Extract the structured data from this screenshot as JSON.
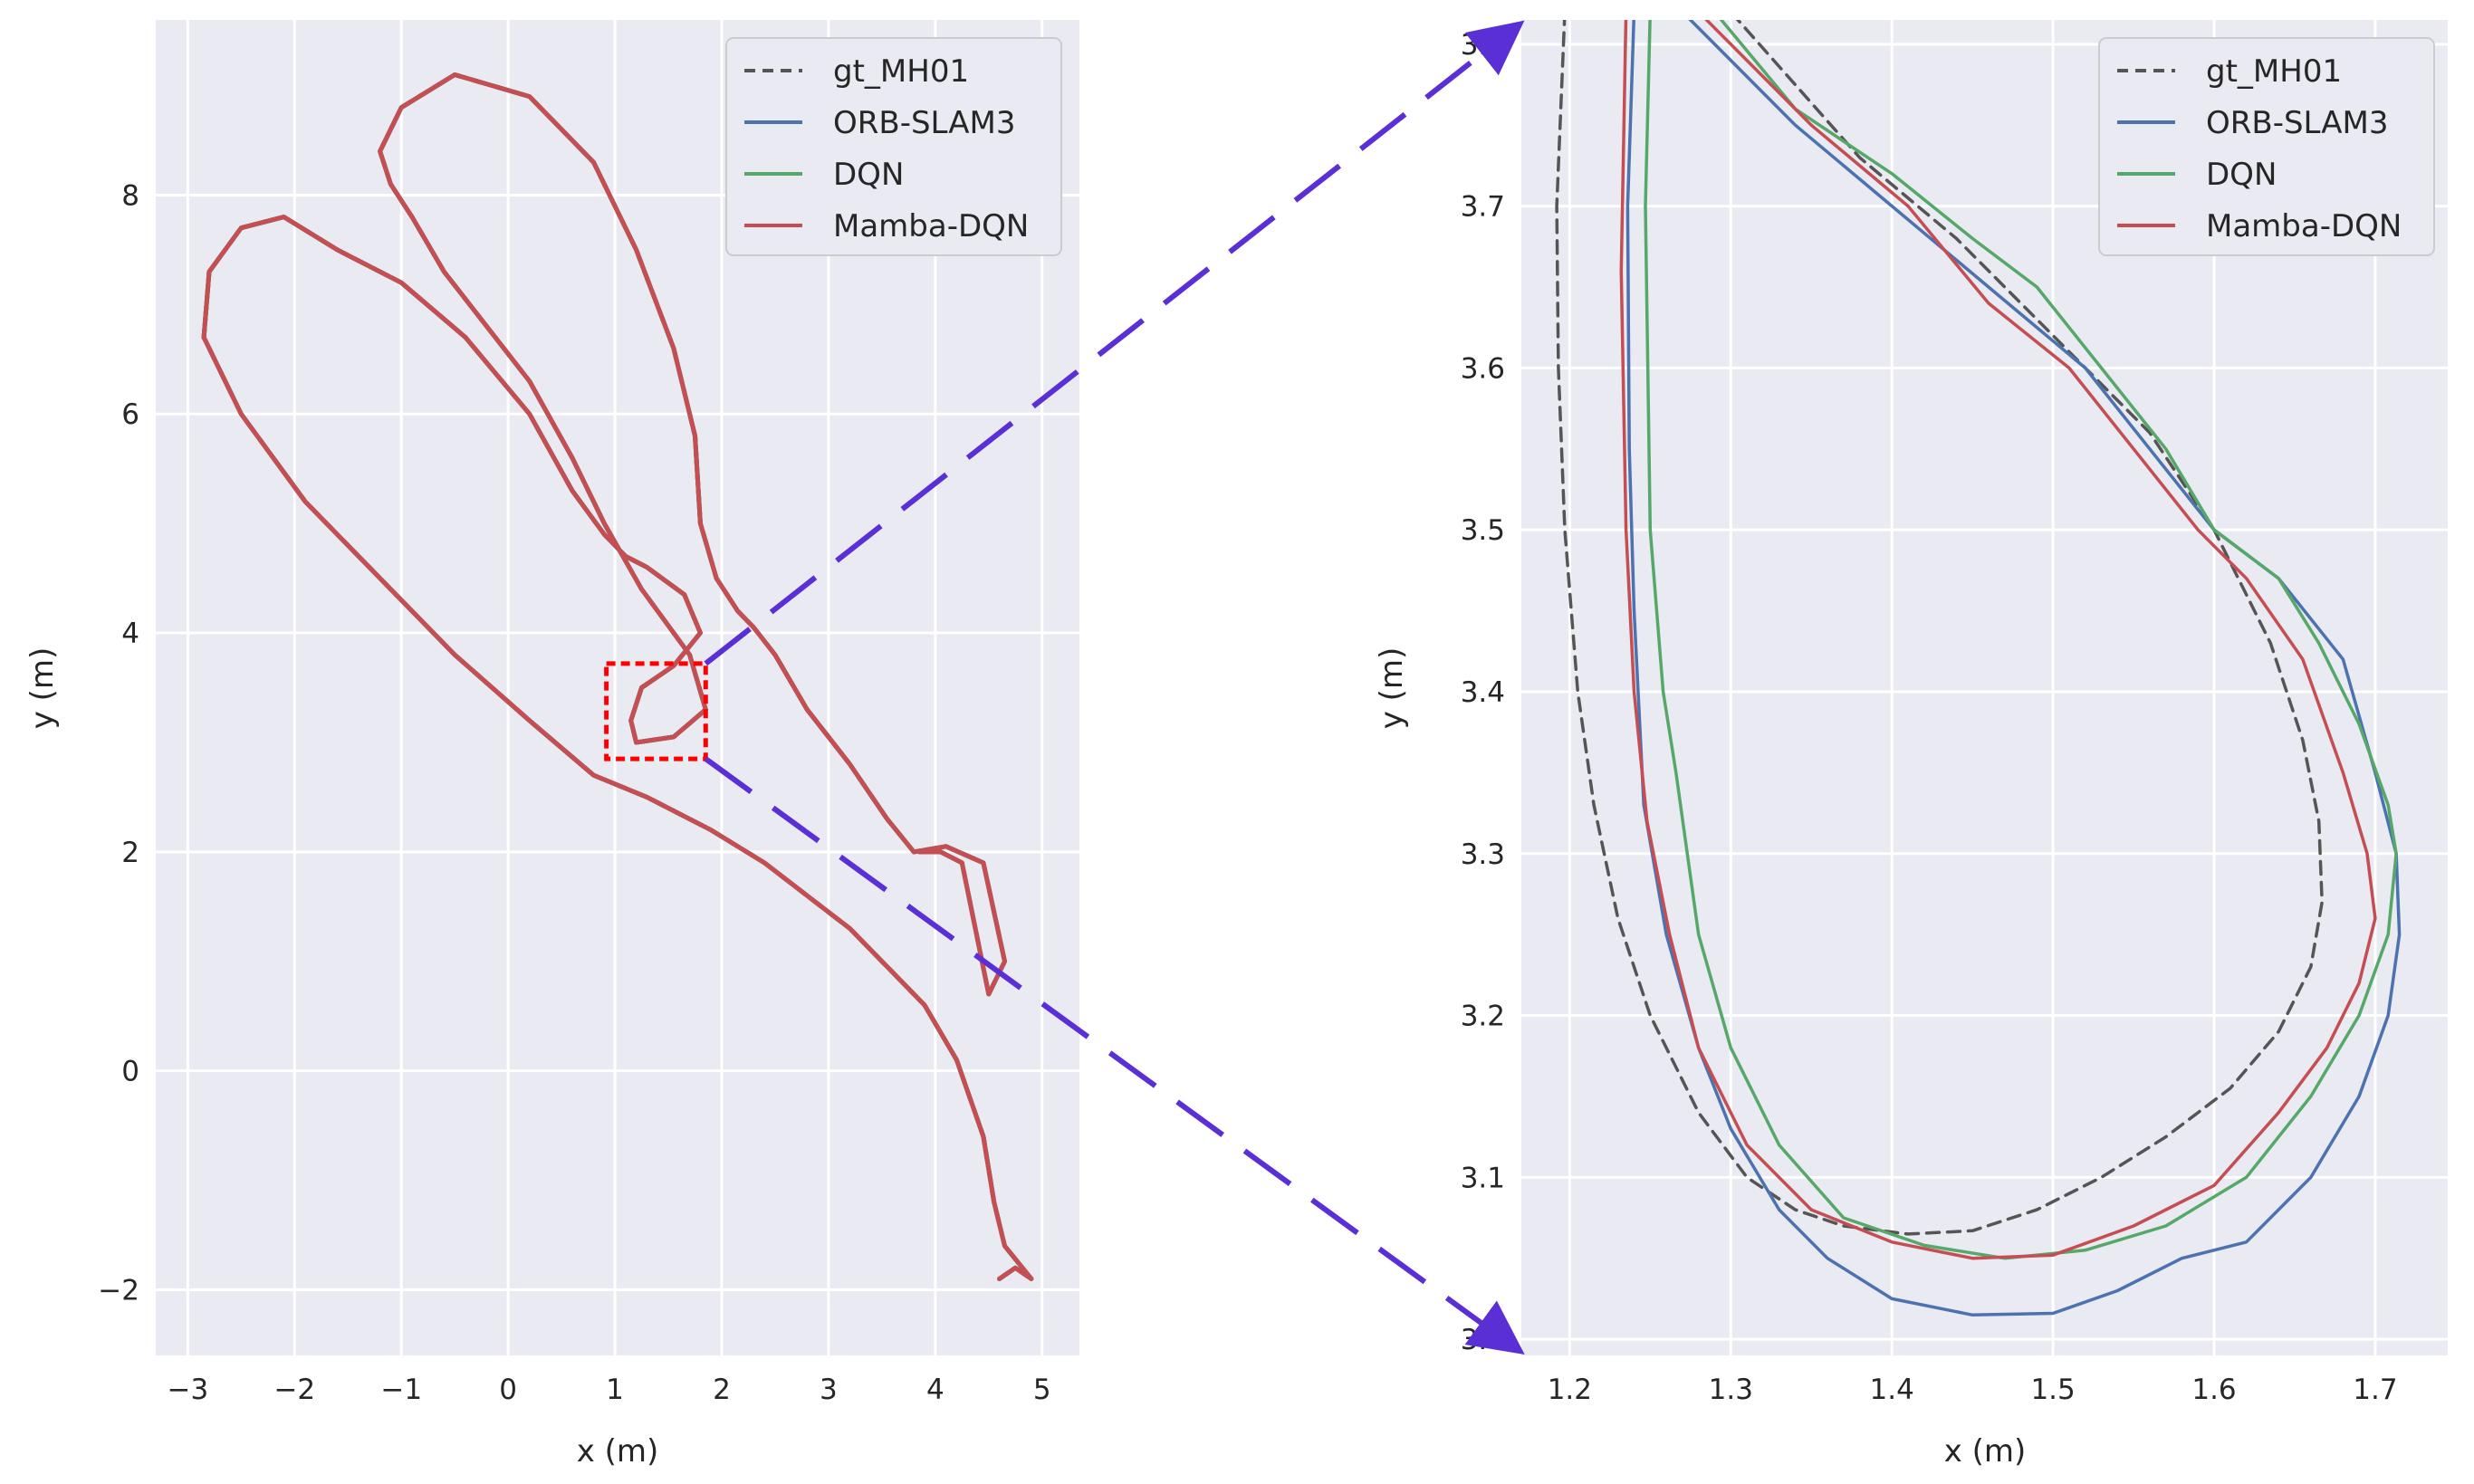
{
  "chart_data": [
    {
      "type": "line",
      "xlabel": "x (m)",
      "ylabel": "y (m)",
      "xlim": [
        -3.3,
        5.35
      ],
      "ylim": [
        -2.6,
        9.6
      ],
      "xticks": [
        -3,
        -2,
        -1,
        0,
        1,
        2,
        3,
        4,
        5
      ],
      "yticks": [
        -2,
        0,
        2,
        4,
        6,
        8
      ],
      "xtick_labels": [
        "−3",
        "−2",
        "−1",
        "0",
        "1",
        "2",
        "3",
        "4",
        "5"
      ],
      "ytick_labels": [
        "−2",
        "0",
        "2",
        "4",
        "6",
        "8"
      ],
      "grid": true,
      "legend": "top-right",
      "highlight_box": {
        "x": [
          0.92,
          1.85
        ],
        "y": [
          2.85,
          3.72
        ],
        "color": "#ff0000"
      },
      "series": [
        {
          "name": "gt_MH01",
          "color": "#555555",
          "style": "dashed",
          "x": [
            4.6,
            4.75,
            4.9,
            4.65,
            4.55,
            4.45,
            4.2,
            3.9,
            3.6,
            3.2,
            2.8,
            2.4,
            1.9,
            1.3,
            0.8,
            0.2,
            -0.5,
            -1.2,
            -1.9,
            -2.5,
            -2.85,
            -2.8,
            -2.5,
            -2.1,
            -1.6,
            -1.0,
            -0.4,
            0.2,
            0.6,
            0.9,
            1.1,
            1.3,
            1.65,
            1.8,
            1.55,
            1.25,
            1.15,
            1.2,
            1.55,
            1.85,
            1.7,
            1.25,
            0.9,
            0.6,
            0.2,
            -0.2,
            -0.6,
            -0.9,
            -1.1,
            -1.2,
            -1.0,
            -0.5,
            0.2,
            0.8,
            1.2,
            1.55,
            1.75,
            1.8,
            1.95,
            2.15,
            2.3,
            2.5,
            2.8,
            3.2,
            3.55,
            3.8,
            4.1,
            4.45,
            4.65,
            4.5,
            4.25,
            4.05,
            3.85
          ],
          "y": [
            -1.9,
            -1.8,
            -1.9,
            -1.6,
            -1.2,
            -0.6,
            0.1,
            0.6,
            0.9,
            1.3,
            1.6,
            1.9,
            2.2,
            2.5,
            2.7,
            3.2,
            3.8,
            4.5,
            5.2,
            6.0,
            6.7,
            7.3,
            7.7,
            7.8,
            7.5,
            7.2,
            6.7,
            6.0,
            5.3,
            4.9,
            4.7,
            4.6,
            4.35,
            4.0,
            3.7,
            3.5,
            3.2,
            3.0,
            3.05,
            3.3,
            3.8,
            4.4,
            5.0,
            5.6,
            6.3,
            6.8,
            7.3,
            7.8,
            8.1,
            8.4,
            8.8,
            9.1,
            8.9,
            8.3,
            7.5,
            6.6,
            5.8,
            5.0,
            4.5,
            4.2,
            4.05,
            3.8,
            3.3,
            2.8,
            2.3,
            2.0,
            2.05,
            1.9,
            1.0,
            0.7,
            1.9,
            2.0,
            2.0
          ]
        },
        {
          "name": "ORB-SLAM3",
          "color": "#4c72b0",
          "style": "solid",
          "x": [
            4.6,
            4.75,
            4.9,
            4.65,
            4.55,
            4.45,
            4.2,
            3.9,
            3.6,
            3.2,
            2.8,
            2.4,
            1.9,
            1.3,
            0.8,
            0.2,
            -0.5,
            -1.2,
            -1.9,
            -2.5,
            -2.85,
            -2.8,
            -2.5,
            -2.1,
            -1.6,
            -1.0,
            -0.4,
            0.2,
            0.6,
            0.9,
            1.1,
            1.3,
            1.65,
            1.8,
            1.55,
            1.25,
            1.15,
            1.2,
            1.55,
            1.85,
            1.7,
            1.25,
            0.9,
            0.6,
            0.2,
            -0.2,
            -0.6,
            -0.9,
            -1.1,
            -1.2,
            -1.0,
            -0.5,
            0.2,
            0.8,
            1.2,
            1.55,
            1.75,
            1.8,
            1.95,
            2.15,
            2.3,
            2.5,
            2.8,
            3.2,
            3.55,
            3.8,
            4.1,
            4.45,
            4.65,
            4.5,
            4.25,
            4.05,
            3.85
          ],
          "y": [
            -1.9,
            -1.8,
            -1.9,
            -1.6,
            -1.2,
            -0.6,
            0.1,
            0.6,
            0.9,
            1.3,
            1.6,
            1.9,
            2.2,
            2.5,
            2.7,
            3.2,
            3.8,
            4.5,
            5.2,
            6.0,
            6.7,
            7.3,
            7.7,
            7.8,
            7.5,
            7.2,
            6.7,
            6.0,
            5.3,
            4.9,
            4.7,
            4.6,
            4.35,
            4.0,
            3.7,
            3.5,
            3.2,
            3.0,
            3.05,
            3.3,
            3.8,
            4.4,
            5.0,
            5.6,
            6.3,
            6.8,
            7.3,
            7.8,
            8.1,
            8.4,
            8.8,
            9.1,
            8.9,
            8.3,
            7.5,
            6.6,
            5.8,
            5.0,
            4.5,
            4.2,
            4.05,
            3.8,
            3.3,
            2.8,
            2.3,
            2.0,
            2.05,
            1.9,
            1.0,
            0.7,
            1.9,
            2.0,
            2.0
          ]
        },
        {
          "name": "DQN",
          "color": "#55a868",
          "style": "solid",
          "x": [
            4.6,
            4.75,
            4.9,
            4.65,
            4.55,
            4.45,
            4.2,
            3.9,
            3.6,
            3.2,
            2.8,
            2.4,
            1.9,
            1.3,
            0.8,
            0.2,
            -0.5,
            -1.2,
            -1.9,
            -2.5,
            -2.85,
            -2.8,
            -2.5,
            -2.1,
            -1.6,
            -1.0,
            -0.4,
            0.2,
            0.6,
            0.9,
            1.1,
            1.3,
            1.65,
            1.8,
            1.55,
            1.25,
            1.15,
            1.2,
            1.55,
            1.85,
            1.7,
            1.25,
            0.9,
            0.6,
            0.2,
            -0.2,
            -0.6,
            -0.9,
            -1.1,
            -1.2,
            -1.0,
            -0.5,
            0.2,
            0.8,
            1.2,
            1.55,
            1.75,
            1.8,
            1.95,
            2.15,
            2.3,
            2.5,
            2.8,
            3.2,
            3.55,
            3.8,
            4.1,
            4.45,
            4.65,
            4.5,
            4.25,
            4.05,
            3.85
          ],
          "y": [
            -1.9,
            -1.8,
            -1.9,
            -1.6,
            -1.2,
            -0.6,
            0.1,
            0.6,
            0.9,
            1.3,
            1.6,
            1.9,
            2.2,
            2.5,
            2.7,
            3.2,
            3.8,
            4.5,
            5.2,
            6.0,
            6.7,
            7.3,
            7.7,
            7.8,
            7.5,
            7.2,
            6.7,
            6.0,
            5.3,
            4.9,
            4.7,
            4.6,
            4.35,
            4.0,
            3.7,
            3.5,
            3.2,
            3.0,
            3.05,
            3.3,
            3.8,
            4.4,
            5.0,
            5.6,
            6.3,
            6.8,
            7.3,
            7.8,
            8.1,
            8.4,
            8.8,
            9.1,
            8.9,
            8.3,
            7.5,
            6.6,
            5.8,
            5.0,
            4.5,
            4.2,
            4.05,
            3.8,
            3.3,
            2.8,
            2.3,
            2.0,
            2.05,
            1.9,
            1.0,
            0.7,
            1.9,
            2.0,
            2.0
          ]
        },
        {
          "name": "Mamba-DQN",
          "color": "#c44e52",
          "style": "solid",
          "x": [
            4.6,
            4.75,
            4.9,
            4.65,
            4.55,
            4.45,
            4.2,
            3.9,
            3.6,
            3.2,
            2.8,
            2.4,
            1.9,
            1.3,
            0.8,
            0.2,
            -0.5,
            -1.2,
            -1.9,
            -2.5,
            -2.85,
            -2.8,
            -2.5,
            -2.1,
            -1.6,
            -1.0,
            -0.4,
            0.2,
            0.6,
            0.9,
            1.1,
            1.3,
            1.65,
            1.8,
            1.55,
            1.25,
            1.15,
            1.2,
            1.55,
            1.85,
            1.7,
            1.25,
            0.9,
            0.6,
            0.2,
            -0.2,
            -0.6,
            -0.9,
            -1.1,
            -1.2,
            -1.0,
            -0.5,
            0.2,
            0.8,
            1.2,
            1.55,
            1.75,
            1.8,
            1.95,
            2.15,
            2.3,
            2.5,
            2.8,
            3.2,
            3.55,
            3.8,
            4.1,
            4.45,
            4.65,
            4.5,
            4.25,
            4.05,
            3.85
          ],
          "y": [
            -1.9,
            -1.8,
            -1.9,
            -1.6,
            -1.2,
            -0.6,
            0.1,
            0.6,
            0.9,
            1.3,
            1.6,
            1.9,
            2.2,
            2.5,
            2.7,
            3.2,
            3.8,
            4.5,
            5.2,
            6.0,
            6.7,
            7.3,
            7.7,
            7.8,
            7.5,
            7.2,
            6.7,
            6.0,
            5.3,
            4.9,
            4.7,
            4.6,
            4.35,
            4.0,
            3.7,
            3.5,
            3.2,
            3.0,
            3.05,
            3.3,
            3.8,
            4.4,
            5.0,
            5.6,
            6.3,
            6.8,
            7.3,
            7.8,
            8.1,
            8.4,
            8.8,
            9.1,
            8.9,
            8.3,
            7.5,
            6.6,
            5.8,
            5.0,
            4.5,
            4.2,
            4.05,
            3.8,
            3.3,
            2.8,
            2.3,
            2.0,
            2.05,
            1.9,
            1.0,
            0.7,
            1.9,
            2.0,
            2.0
          ]
        }
      ]
    },
    {
      "type": "line",
      "xlabel": "x (m)",
      "ylabel": "y (m)",
      "xlim": [
        1.17,
        1.745
      ],
      "ylim": [
        2.99,
        3.815
      ],
      "xticks": [
        1.2,
        1.3,
        1.4,
        1.5,
        1.6,
        1.7
      ],
      "yticks": [
        3.0,
        3.1,
        3.2,
        3.3,
        3.4,
        3.5,
        3.6,
        3.7,
        3.8
      ],
      "xtick_labels": [
        "1.2",
        "1.3",
        "1.4",
        "1.5",
        "1.6",
        "1.7"
      ],
      "ytick_labels": [
        "3.0",
        "3.1",
        "3.2",
        "3.3",
        "3.4",
        "3.5",
        "3.6",
        "3.7",
        "3.8"
      ],
      "grid": true,
      "legend": "top-right",
      "series": [
        {
          "name": "gt_MH01",
          "color": "#555555",
          "style": "dashed",
          "x": [
            1.197,
            1.192,
            1.193,
            1.197,
            1.205,
            1.215,
            1.23,
            1.25,
            1.28,
            1.31,
            1.34,
            1.37,
            1.41,
            1.45,
            1.49,
            1.53,
            1.57,
            1.61,
            1.64,
            1.66,
            1.667,
            1.665,
            1.655,
            1.635,
            1.6,
            1.56,
            1.5,
            1.44,
            1.38,
            1.3
          ],
          "y": [
            3.82,
            3.7,
            3.6,
            3.5,
            3.4,
            3.33,
            3.26,
            3.2,
            3.14,
            3.1,
            3.08,
            3.07,
            3.065,
            3.067,
            3.08,
            3.1,
            3.125,
            3.155,
            3.19,
            3.23,
            3.27,
            3.32,
            3.37,
            3.43,
            3.5,
            3.56,
            3.62,
            3.68,
            3.73,
            3.82
          ]
        },
        {
          "name": "ORB-SLAM3",
          "color": "#4c72b0",
          "style": "solid",
          "x": [
            1.24,
            1.236,
            1.237,
            1.24,
            1.246,
            1.26,
            1.28,
            1.3,
            1.33,
            1.36,
            1.4,
            1.45,
            1.5,
            1.54,
            1.58,
            1.62,
            1.66,
            1.69,
            1.708,
            1.715,
            1.713,
            1.7,
            1.68,
            1.64,
            1.6,
            1.56,
            1.52,
            1.46,
            1.4,
            1.34,
            1.27
          ],
          "y": [
            3.82,
            3.7,
            3.55,
            3.45,
            3.33,
            3.25,
            3.18,
            3.13,
            3.08,
            3.05,
            3.025,
            3.015,
            3.016,
            3.03,
            3.05,
            3.06,
            3.1,
            3.15,
            3.2,
            3.25,
            3.3,
            3.35,
            3.42,
            3.47,
            3.5,
            3.55,
            3.6,
            3.65,
            3.7,
            3.75,
            3.82
          ]
        },
        {
          "name": "DQN",
          "color": "#55a868",
          "style": "solid",
          "x": [
            1.25,
            1.247,
            1.25,
            1.258,
            1.266,
            1.28,
            1.3,
            1.33,
            1.37,
            1.42,
            1.47,
            1.52,
            1.57,
            1.62,
            1.66,
            1.69,
            1.708,
            1.713,
            1.708,
            1.69,
            1.665,
            1.64,
            1.6,
            1.57,
            1.53,
            1.49,
            1.45,
            1.4,
            1.34,
            1.29
          ],
          "y": [
            3.82,
            3.7,
            3.5,
            3.4,
            3.35,
            3.25,
            3.18,
            3.12,
            3.075,
            3.058,
            3.05,
            3.055,
            3.07,
            3.1,
            3.15,
            3.2,
            3.25,
            3.3,
            3.33,
            3.38,
            3.43,
            3.47,
            3.5,
            3.55,
            3.6,
            3.65,
            3.68,
            3.72,
            3.76,
            3.82
          ]
        },
        {
          "name": "Mamba-DQN",
          "color": "#c44e52",
          "style": "solid",
          "x": [
            1.235,
            1.232,
            1.235,
            1.24,
            1.248,
            1.262,
            1.28,
            1.31,
            1.35,
            1.4,
            1.45,
            1.5,
            1.55,
            1.6,
            1.64,
            1.67,
            1.69,
            1.7,
            1.695,
            1.68,
            1.655,
            1.62,
            1.59,
            1.55,
            1.51,
            1.46,
            1.41,
            1.35,
            1.28
          ],
          "y": [
            3.82,
            3.66,
            3.5,
            3.4,
            3.32,
            3.25,
            3.18,
            3.12,
            3.08,
            3.06,
            3.05,
            3.052,
            3.07,
            3.095,
            3.14,
            3.18,
            3.22,
            3.26,
            3.3,
            3.35,
            3.42,
            3.47,
            3.5,
            3.55,
            3.6,
            3.64,
            3.7,
            3.75,
            3.82
          ]
        }
      ]
    }
  ],
  "colors": {
    "panel_bg": "#eaeaf2",
    "grid": "#ffffff",
    "zoom_arrow": "#5a2fd6",
    "highlight_box": "#ff0000"
  }
}
